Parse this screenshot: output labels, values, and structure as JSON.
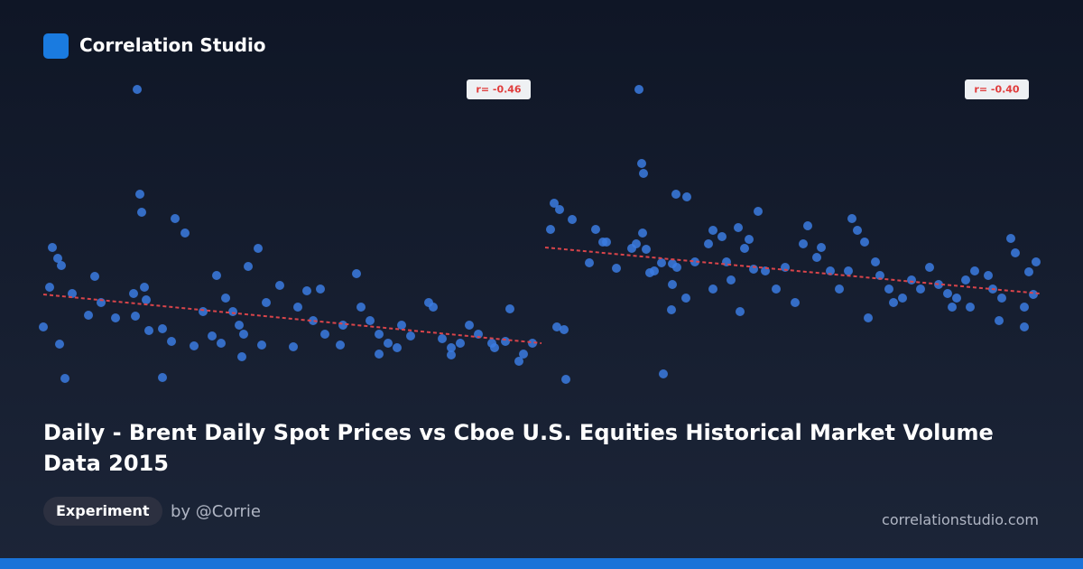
{
  "header": {
    "brand": "Correlation Studio",
    "title": "Daily - Brent Daily Spot Prices vs Cboe U.S. Equities Historical Market Volume Data 2015",
    "badge": "Experiment",
    "author": "by @Corrie",
    "site": "correlationstudio.com"
  },
  "chart_data": [
    {
      "type": "scatter",
      "color": "#3b7be0",
      "xlim": [
        0,
        552
      ],
      "ylim": [
        0,
        330
      ],
      "x": [
        104,
        107,
        109,
        146,
        157,
        10,
        16,
        20,
        7,
        32,
        57,
        50,
        64,
        80,
        100,
        112,
        114,
        102,
        117,
        132,
        142,
        167,
        132,
        24,
        18,
        0,
        192,
        202,
        210,
        217,
        222,
        227,
        238,
        247,
        262,
        282,
        292,
        307,
        299,
        312,
        332,
        347,
        352,
        362,
        372,
        382,
        392,
        397,
        407,
        427,
        432,
        442,
        452,
        462,
        472,
        482,
        497,
        512,
        517,
        532,
        542,
        177,
        187,
        197,
        220,
        242,
        277,
        329,
        372,
        452,
        500,
        527
      ],
      "y": [
        326,
        210,
        190,
        183,
        167,
        151,
        139,
        131,
        107,
        100,
        119,
        76,
        90,
        73,
        100,
        107,
        93,
        75,
        59,
        61,
        47,
        42,
        7,
        6,
        44,
        63,
        120,
        95,
        80,
        65,
        55,
        130,
        150,
        90,
        109,
        85,
        103,
        105,
        70,
        55,
        65,
        122,
        85,
        70,
        55,
        45,
        40,
        65,
        53,
        90,
        85,
        50,
        40,
        45,
        65,
        55,
        45,
        47,
        83,
        33,
        45,
        80,
        53,
        45,
        30,
        43,
        41,
        43,
        33,
        32,
        40,
        25
      ],
      "trend_y": [
        99,
        45
      ],
      "r": {
        "value": -0.46,
        "label": "r= -0.46"
      }
    },
    {
      "type": "scatter",
      "color": "#3b7be0",
      "xlim": [
        0,
        548
      ],
      "ylim": [
        0,
        330
      ],
      "x": [
        104,
        107,
        109,
        145,
        157,
        10,
        16,
        30,
        6,
        56,
        64,
        68,
        49,
        79,
        96,
        101,
        108,
        112,
        116,
        121,
        129,
        141,
        146,
        141,
        140,
        131,
        23,
        13,
        21,
        166,
        181,
        186,
        196,
        201,
        206,
        214,
        221,
        226,
        231,
        236,
        244,
        256,
        266,
        277,
        286,
        291,
        301,
        306,
        316,
        326,
        336,
        340,
        346,
        354,
        358,
        366,
        371,
        381,
        386,
        396,
        406,
        416,
        426,
        436,
        446,
        456,
        466,
        476,
        491,
        496,
        506,
        516,
        521,
        531,
        536,
        544,
        541,
        503,
        531,
        156,
        186,
        216,
        451,
        471
      ],
      "y": [
        326,
        244,
        233,
        210,
        207,
        200,
        193,
        182,
        171,
        171,
        157,
        157,
        134,
        128,
        150,
        155,
        167,
        149,
        123,
        125,
        134,
        133,
        129,
        110,
        82,
        11,
        5,
        63,
        60,
        135,
        155,
        170,
        163,
        135,
        115,
        173,
        150,
        160,
        127,
        191,
        125,
        105,
        129,
        90,
        155,
        175,
        140,
        151,
        125,
        105,
        125,
        183,
        170,
        157,
        73,
        135,
        120,
        105,
        90,
        95,
        115,
        105,
        129,
        110,
        100,
        95,
        115,
        125,
        120,
        105,
        95,
        161,
        145,
        85,
        124,
        135,
        99,
        70,
        63,
        95,
        105,
        80,
        85,
        85
      ],
      "trend_y": [
        151,
        100
      ],
      "r": {
        "value": -0.4,
        "label": "r= -0.40"
      }
    }
  ]
}
